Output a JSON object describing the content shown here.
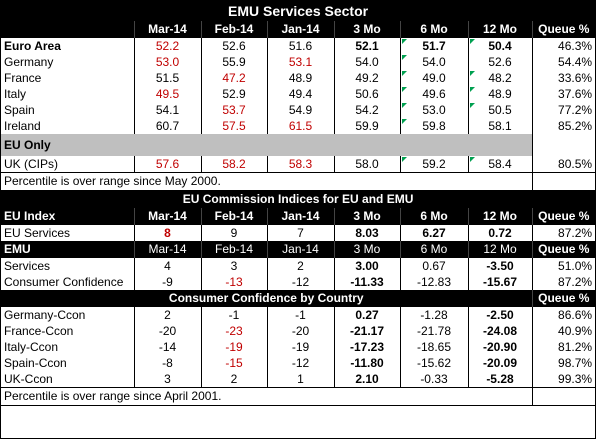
{
  "title": "EMU Services Sector",
  "section1": {
    "headers": [
      "",
      "Mar-14",
      "Feb-14",
      "Jan-14",
      "3 Mo",
      "6 Mo",
      "12 Mo",
      "Queue %"
    ],
    "euro_area": {
      "label": "Euro Area",
      "values": [
        "52.2",
        "52.6",
        "51.6",
        "52.1",
        "51.7",
        "50.4",
        "46.3%"
      ]
    },
    "countries": [
      {
        "label": "Germany",
        "values": [
          "53.0",
          "55.9",
          "53.1",
          "54.0",
          "54.0",
          "52.6",
          "54.4%"
        ]
      },
      {
        "label": "France",
        "values": [
          "51.5",
          "47.2",
          "48.9",
          "49.2",
          "49.0",
          "48.2",
          "33.6%"
        ]
      },
      {
        "label": "Italy",
        "values": [
          "49.5",
          "52.9",
          "49.4",
          "50.6",
          "49.6",
          "48.9",
          "37.6%"
        ]
      },
      {
        "label": "Spain",
        "values": [
          "54.1",
          "53.7",
          "54.9",
          "54.2",
          "53.0",
          "50.5",
          "77.2%"
        ]
      },
      {
        "label": "Ireland",
        "values": [
          "60.7",
          "57.5",
          "61.5",
          "59.9",
          "59.8",
          "58.1",
          "85.2%"
        ]
      }
    ],
    "eu_only_label": "EU Only",
    "uk": {
      "label": "UK (CIPs)",
      "values": [
        "57.6",
        "58.2",
        "58.3",
        "58.0",
        "59.2",
        "58.4",
        "80.5%"
      ]
    },
    "note": "Percentile is over range since May 2000."
  },
  "section2": {
    "title": "EU Commission Indices for EU and EMU",
    "headers": [
      "EU Index",
      "Mar-14",
      "Feb-14",
      "Jan-14",
      "3 Mo",
      "6 Mo",
      "12 Mo",
      "Queue %"
    ],
    "eu_services": {
      "label": "EU Services",
      "values": [
        "8",
        "9",
        "7",
        "8.03",
        "6.27",
        "0.72",
        "87.2%"
      ]
    },
    "emu_headers": [
      "EMU",
      "Mar-14",
      "Feb-14",
      "Jan-14",
      "3 Mo",
      "6 Mo",
      "12 Mo",
      "Queue %"
    ],
    "services": {
      "label": "Services",
      "values": [
        "4",
        "3",
        "2",
        "3.00",
        "0.67",
        "-3.50",
        "51.0%"
      ]
    },
    "consumer_confidence": {
      "label": "Consumer Confidence",
      "values": [
        "-9",
        "-13",
        "-12",
        "-11.33",
        "-12.83",
        "-15.67",
        "87.2%"
      ]
    }
  },
  "section3": {
    "title": "Consumer Confidence by Country",
    "queue_label": "Queue %",
    "rows": [
      {
        "label": "Germany-Ccon",
        "values": [
          "2",
          "-1",
          "-1",
          "0.27",
          "-1.28",
          "-2.50",
          "86.6%"
        ]
      },
      {
        "label": "France-Ccon",
        "values": [
          "-20",
          "-23",
          "-20",
          "-21.17",
          "-21.78",
          "-24.08",
          "40.9%"
        ]
      },
      {
        "label": "Italy-Ccon",
        "values": [
          "-14",
          "-19",
          "-19",
          "-17.23",
          "-18.65",
          "-20.90",
          "81.2%"
        ]
      },
      {
        "label": "Spain-Ccon",
        "values": [
          "-8",
          "-15",
          "-12",
          "-11.80",
          "-15.62",
          "-20.09",
          "98.7%"
        ]
      },
      {
        "label": "UK-Ccon",
        "values": [
          "3",
          "2",
          "1",
          "2.10",
          "-0.33",
          "-5.28",
          "99.3%"
        ]
      }
    ],
    "note": "Percentile is over range since April 2001."
  },
  "colors": {
    "header_bg": "#000000",
    "header_text": "#ffffff",
    "red_value": "#c00000",
    "gray_band": "#bfbfbf",
    "green_marker": "#00a050"
  }
}
